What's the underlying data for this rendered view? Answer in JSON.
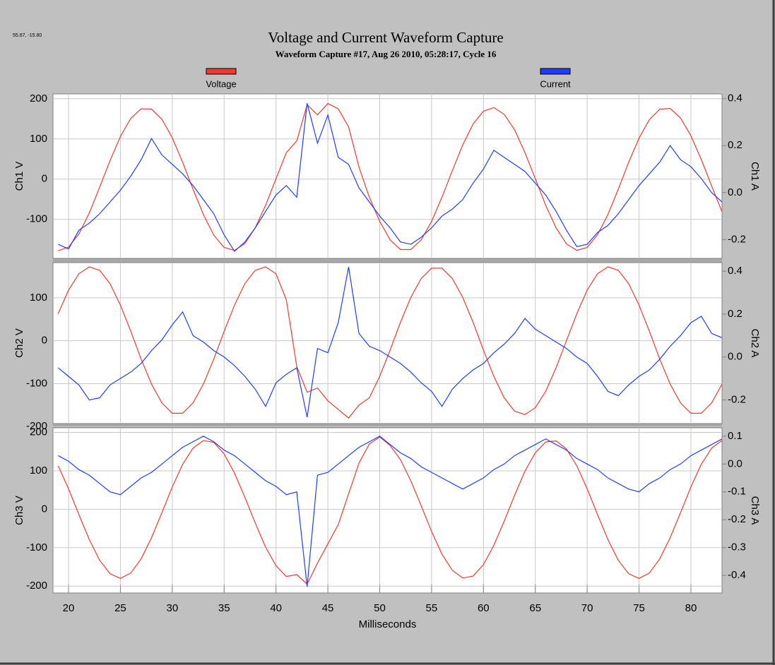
{
  "title": "Voltage and Current Waveform Capture",
  "subtitle": "Waveform Capture #17, Aug 26 2010, 05:28:17,  Cycle 16",
  "cursor_readout": "55.67, -15.80",
  "chart_data": [
    {
      "type": "line",
      "ylabel": "Ch1 V",
      "y2label": "Ch1 A",
      "x": [
        19,
        20,
        21,
        22,
        23,
        24,
        25,
        26,
        27,
        28,
        29,
        30,
        31,
        32,
        33,
        34,
        35,
        36,
        37,
        38,
        39,
        40,
        41,
        42,
        43,
        44,
        45,
        46,
        47,
        48,
        49,
        50,
        51,
        52,
        53,
        54,
        55,
        56,
        57,
        58,
        59,
        60,
        61,
        62,
        63,
        64,
        65,
        66,
        67,
        68,
        69,
        70,
        71,
        72,
        73,
        74,
        75,
        76,
        77,
        78,
        79,
        80,
        81,
        82,
        83
      ],
      "xlim": [
        18.5,
        83
      ],
      "xticks": [
        20,
        25,
        30,
        35,
        40,
        45,
        50,
        55,
        60,
        65,
        70,
        75,
        80
      ],
      "ylim": [
        -197,
        212
      ],
      "yticks": [
        200,
        100,
        0,
        -100
      ],
      "y2lim": [
        -0.28,
        0.42
      ],
      "y2ticks": [
        0.4,
        0.2,
        {
          "value": 0,
          "label": "0.0"
        },
        -0.2
      ],
      "grid": true,
      "series": [
        {
          "name": "Voltage",
          "color": "#f03a2e",
          "values": [
            -178,
            -169,
            -136,
            -84,
            -20,
            46,
            106,
            151,
            175,
            174,
            149,
            103,
            42,
            -25,
            -88,
            -139,
            -170,
            -177,
            -160,
            -121,
            -65,
            1,
            66,
            95,
            185,
            160,
            188,
            175,
            130,
            30,
            -45,
            -105,
            -151,
            -175,
            -175,
            -151,
            -105,
            -45,
            21,
            85,
            137,
            169,
            178,
            161,
            123,
            66,
            1,
            -65,
            -121,
            -161,
            -177,
            -170,
            -138,
            -88,
            -25,
            42,
            102,
            148,
            174,
            176,
            152,
            108,
            49,
            -17,
            -81
          ]
        },
        {
          "name": "Current",
          "color": "#1f3dff",
          "axis": "y2",
          "values": [
            -0.22,
            -0.24,
            -0.16,
            -0.13,
            -0.09,
            -0.04,
            0.01,
            0.07,
            0.14,
            0.23,
            0.16,
            0.12,
            0.08,
            0.03,
            -0.03,
            -0.09,
            -0.18,
            -0.25,
            -0.21,
            -0.15,
            -0.08,
            -0.01,
            0.03,
            -0.02,
            0.38,
            0.21,
            0.33,
            0.15,
            0.12,
            0.02,
            -0.04,
            -0.1,
            -0.15,
            -0.21,
            -0.22,
            -0.19,
            -0.15,
            -0.1,
            -0.07,
            -0.03,
            0.04,
            0.1,
            0.18,
            0.15,
            0.12,
            0.09,
            0.04,
            -0.01,
            -0.08,
            -0.16,
            -0.23,
            -0.22,
            -0.17,
            -0.14,
            -0.09,
            -0.03,
            0.03,
            0.08,
            0.13,
            0.2,
            0.14,
            0.11,
            0.06,
            0.0,
            -0.04
          ]
        }
      ]
    },
    {
      "type": "line",
      "ylabel": "Ch2 V",
      "y2label": "Ch2 A",
      "x": [
        19,
        20,
        21,
        22,
        23,
        24,
        25,
        26,
        27,
        28,
        29,
        30,
        31,
        32,
        33,
        34,
        35,
        36,
        37,
        38,
        39,
        40,
        41,
        42,
        43,
        44,
        45,
        46,
        47,
        48,
        49,
        50,
        51,
        52,
        53,
        54,
        55,
        56,
        57,
        58,
        59,
        60,
        61,
        62,
        63,
        64,
        65,
        66,
        67,
        68,
        69,
        70,
        71,
        72,
        73,
        74,
        75,
        76,
        77,
        78,
        79,
        80,
        81,
        82,
        83
      ],
      "xlim": [
        18.5,
        83
      ],
      "xticks": [
        20,
        25,
        30,
        35,
        40,
        45,
        50,
        55,
        60,
        65,
        70,
        75,
        80
      ],
      "ylim": [
        -193,
        182
      ],
      "yticks": [
        100,
        0,
        -100,
        -200
      ],
      "y2lim": [
        -0.31,
        0.44
      ],
      "y2ticks": [
        0.4,
        0.2,
        {
          "value": 0,
          "label": "0.0"
        },
        -0.2
      ],
      "grid": true,
      "series": [
        {
          "color": "#f03a2e",
          "values": [
            63,
            118,
            156,
            172,
            164,
            133,
            83,
            22,
            -43,
            -101,
            -145,
            -169,
            -169,
            -145,
            -101,
            -43,
            22,
            83,
            133,
            164,
            172,
            156,
            95,
            -60,
            -120,
            -110,
            -140,
            -160,
            -180,
            -150,
            -133,
            -83,
            -22,
            43,
            101,
            145,
            169,
            169,
            145,
            101,
            43,
            -22,
            -83,
            -133,
            -164,
            -172,
            -156,
            -118,
            -63,
            0,
            63,
            118,
            156,
            172,
            164,
            133,
            83,
            22,
            -43,
            -101,
            -145,
            -169,
            -169,
            -145,
            -101
          ]
        },
        {
          "color": "#1f3dff",
          "axis": "y2",
          "values": [
            -0.05,
            -0.09,
            -0.13,
            -0.2,
            -0.19,
            -0.13,
            -0.1,
            -0.07,
            -0.03,
            0.03,
            0.08,
            0.15,
            0.21,
            0.1,
            0.07,
            0.03,
            0.0,
            -0.04,
            -0.09,
            -0.15,
            -0.23,
            -0.12,
            -0.08,
            -0.05,
            -0.28,
            0.04,
            0.02,
            0.16,
            0.42,
            0.11,
            0.05,
            0.03,
            0.0,
            -0.03,
            -0.07,
            -0.12,
            -0.16,
            -0.23,
            -0.15,
            -0.1,
            -0.06,
            -0.03,
            0.02,
            0.06,
            0.11,
            0.18,
            0.13,
            0.1,
            0.07,
            0.04,
            0.0,
            -0.03,
            -0.09,
            -0.16,
            -0.18,
            -0.13,
            -0.09,
            -0.06,
            -0.01,
            0.05,
            0.1,
            0.16,
            0.19,
            0.11,
            0.09
          ]
        }
      ]
    },
    {
      "type": "line",
      "ylabel": "Ch3 V",
      "y2label": "Ch3 A",
      "xlabel": "Milliseconds",
      "x": [
        19,
        20,
        21,
        22,
        23,
        24,
        25,
        26,
        27,
        28,
        29,
        30,
        31,
        32,
        33,
        34,
        35,
        36,
        37,
        38,
        39,
        40,
        41,
        42,
        43,
        44,
        45,
        46,
        47,
        48,
        49,
        50,
        51,
        52,
        53,
        54,
        55,
        56,
        57,
        58,
        59,
        60,
        61,
        62,
        63,
        64,
        65,
        66,
        67,
        68,
        69,
        70,
        71,
        72,
        73,
        74,
        75,
        76,
        77,
        78,
        79,
        80,
        81,
        82,
        83
      ],
      "xlim": [
        18.5,
        83
      ],
      "xticks": [
        20,
        25,
        30,
        35,
        40,
        45,
        50,
        55,
        60,
        65,
        70,
        75,
        80
      ],
      "ylim": [
        -218,
        212
      ],
      "yticks": [
        200,
        100,
        0,
        -100,
        -200
      ],
      "y2lim": [
        -0.463,
        0.13
      ],
      "y2ticks": [
        0.1,
        {
          "value": 0,
          "label": "0.0"
        },
        -0.1,
        -0.2,
        -0.3,
        -0.4
      ],
      "grid": true,
      "series": [
        {
          "color": "#f03a2e",
          "values": [
            113,
            53,
            -14,
            -79,
            -133,
            -168,
            -180,
            -166,
            -129,
            -74,
            -9,
            58,
            117,
            159,
            179,
            174,
            144,
            94,
            31,
            -36,
            -99,
            -147,
            -175,
            -170,
            -195,
            -140,
            -90,
            -40,
            40,
            120,
            170,
            188,
            166,
            129,
            74,
            9,
            -58,
            -117,
            -159,
            -179,
            -174,
            -144,
            -94,
            -31,
            36,
            99,
            147,
            175,
            178,
            157,
            113,
            53,
            -14,
            -79,
            -133,
            -168,
            -180,
            -166,
            -129,
            -74,
            -9,
            58,
            117,
            159,
            179
          ]
        },
        {
          "color": "#1f3dff",
          "axis": "y2",
          "values": [
            0.03,
            0.01,
            -0.02,
            -0.04,
            -0.07,
            -0.1,
            -0.11,
            -0.08,
            -0.05,
            -0.03,
            0.0,
            0.03,
            0.06,
            0.08,
            0.1,
            0.08,
            0.05,
            0.03,
            0.0,
            -0.03,
            -0.06,
            -0.08,
            -0.11,
            -0.1,
            -0.44,
            -0.04,
            -0.03,
            0.0,
            0.03,
            0.06,
            0.08,
            0.1,
            0.07,
            0.04,
            0.02,
            -0.01,
            -0.03,
            -0.05,
            -0.07,
            -0.09,
            -0.07,
            -0.05,
            -0.02,
            0.0,
            0.03,
            0.05,
            0.07,
            0.09,
            0.07,
            0.05,
            0.02,
            0.0,
            -0.02,
            -0.05,
            -0.07,
            -0.09,
            -0.1,
            -0.07,
            -0.05,
            -0.02,
            0.0,
            0.03,
            0.05,
            0.07,
            0.09
          ]
        }
      ]
    }
  ]
}
